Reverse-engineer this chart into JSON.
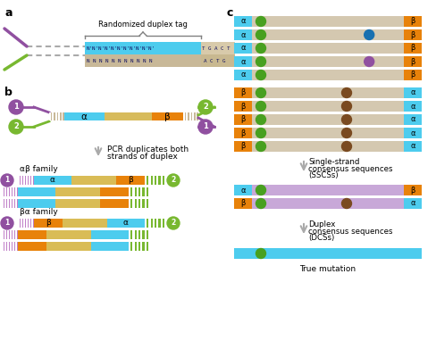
{
  "colors": {
    "cyan": "#4DCCEE",
    "orange": "#E8820A",
    "yellow": "#E8C020",
    "tan": "#C8B898",
    "tan_light": "#D8CAAA",
    "purple_dark": "#9050A0",
    "green": "#78B830",
    "purple_light": "#C080C8",
    "lavender": "#C8A8D8",
    "brown": "#8B5E3C",
    "white": "#FFFFFF",
    "bg_tan": "#D4C8B0",
    "arrow_gray": "#AAAAAA",
    "brace_gray": "#808080",
    "blue_dot": "#1870B0",
    "green_dot": "#48A020",
    "brown_dot": "#7A4A20"
  },
  "panel_a": {
    "label": "a",
    "brace_text": "Randomized duplex tag"
  },
  "panel_b": {
    "label": "b",
    "arrow_text1": "PCR duplicates both",
    "arrow_text2": "strands of duplex",
    "ab_label": "αβ family",
    "ba_label": "βα family",
    "alpha": "α",
    "beta": "β"
  },
  "panel_c": {
    "label": "c",
    "sscs_text": [
      "Single-strand",
      "consensus sequences",
      "(SSCSs)"
    ],
    "dcs_text": [
      "Duplex",
      "consensus sequences",
      "(DCSs)"
    ],
    "true_mut": "True mutation",
    "alpha": "α",
    "beta": "β"
  }
}
